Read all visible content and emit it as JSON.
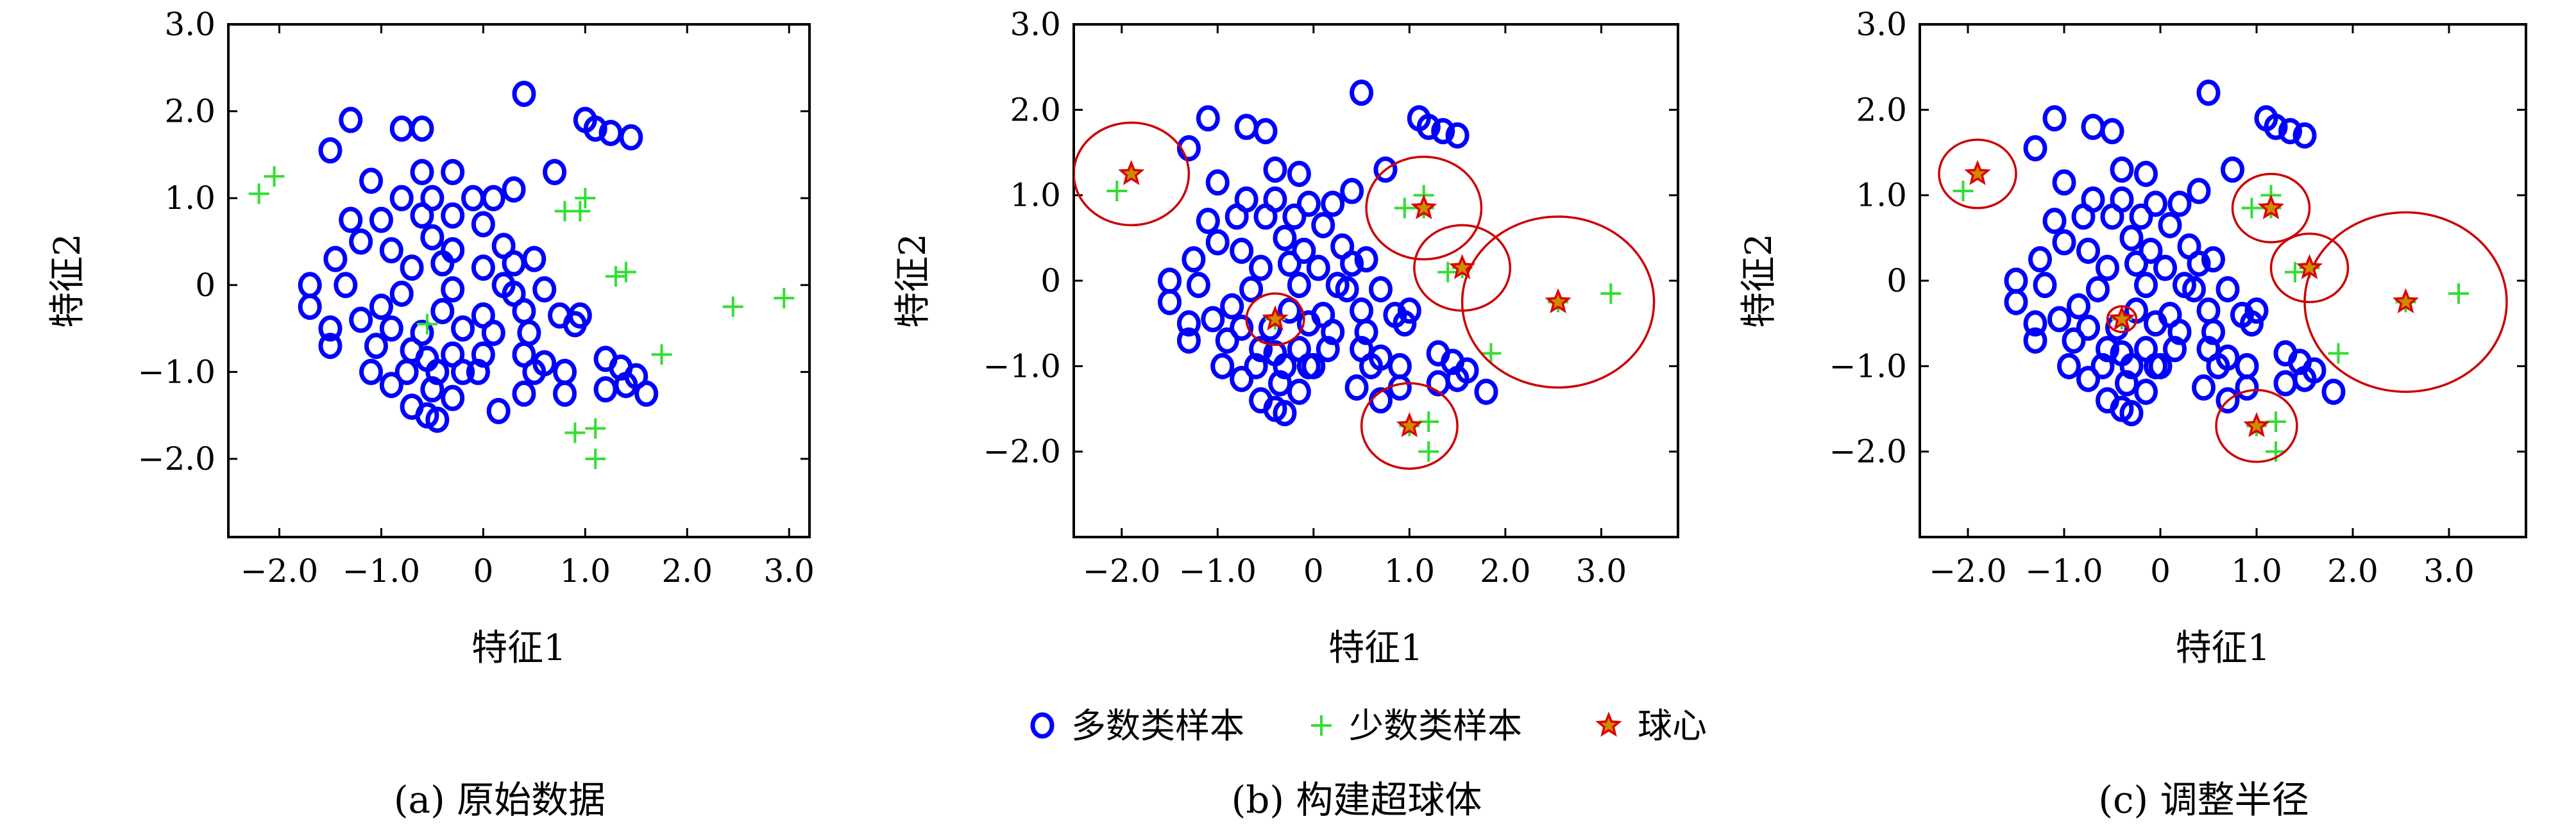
{
  "legend": {
    "majority": "多数类样本",
    "minority": "少数类样本",
    "center": "球心"
  },
  "colors": {
    "majority": "#0000ff",
    "minority": "#33dd33",
    "center_fill": "#cc8b00",
    "center_stroke": "#dd0000",
    "circle": "#cc0000"
  },
  "chart_data": [
    {
      "type": "scatter",
      "caption": "(a) 原始数据",
      "xlabel": "特征1",
      "ylabel": "特征2",
      "xlim": [
        -2.5,
        3.2
      ],
      "ylim": [
        -2.9,
        3.0
      ],
      "xticks": [
        -2.0,
        -1.0,
        0,
        1.0,
        2.0,
        3.0
      ],
      "xtick_labels": [
        "−2.0",
        "−1.0",
        "0",
        "1.0",
        "2.0",
        "3.0"
      ],
      "yticks": [
        -2.0,
        -1.0,
        0,
        1.0,
        2.0,
        3.0
      ],
      "ytick_labels": [
        "−2.0",
        "−1.0",
        "0",
        "1.0",
        "2.0",
        "3.0"
      ],
      "majority": [
        [
          0.4,
          2.2
        ],
        [
          -1.3,
          1.9
        ],
        [
          -0.8,
          1.8
        ],
        [
          -0.6,
          1.8
        ],
        [
          1.0,
          1.9
        ],
        [
          1.1,
          1.8
        ],
        [
          1.25,
          1.75
        ],
        [
          1.45,
          1.7
        ],
        [
          -1.5,
          1.55
        ],
        [
          0.7,
          1.3
        ],
        [
          -1.1,
          1.2
        ],
        [
          -0.6,
          1.3
        ],
        [
          -0.3,
          1.3
        ],
        [
          0.3,
          1.1
        ],
        [
          -0.8,
          1.0
        ],
        [
          -0.5,
          1.0
        ],
        [
          -0.1,
          1.0
        ],
        [
          0.1,
          1.0
        ],
        [
          -1.3,
          0.75
        ],
        [
          -1.0,
          0.75
        ],
        [
          -0.6,
          0.8
        ],
        [
          -0.3,
          0.8
        ],
        [
          0.0,
          0.7
        ],
        [
          -1.2,
          0.5
        ],
        [
          -0.9,
          0.4
        ],
        [
          -0.5,
          0.55
        ],
        [
          -0.3,
          0.4
        ],
        [
          0.2,
          0.45
        ],
        [
          -1.45,
          0.3
        ],
        [
          -0.7,
          0.2
        ],
        [
          -0.4,
          0.25
        ],
        [
          0.0,
          0.2
        ],
        [
          0.3,
          0.25
        ],
        [
          0.5,
          0.3
        ],
        [
          -1.7,
          0.0
        ],
        [
          -1.35,
          0.0
        ],
        [
          -0.8,
          -0.1
        ],
        [
          -0.3,
          -0.05
        ],
        [
          0.2,
          0.0
        ],
        [
          0.6,
          -0.05
        ],
        [
          -1.7,
          -0.25
        ],
        [
          -1.0,
          -0.25
        ],
        [
          -0.4,
          -0.3
        ],
        [
          0.0,
          -0.35
        ],
        [
          0.4,
          -0.3
        ],
        [
          0.75,
          -0.35
        ],
        [
          0.95,
          -0.35
        ],
        [
          -1.5,
          -0.5
        ],
        [
          -1.2,
          -0.4
        ],
        [
          -0.9,
          -0.5
        ],
        [
          -0.6,
          -0.55
        ],
        [
          -0.2,
          -0.5
        ],
        [
          0.1,
          -0.55
        ],
        [
          0.45,
          -0.55
        ],
        [
          0.9,
          -0.45
        ],
        [
          -1.5,
          -0.7
        ],
        [
          -1.05,
          -0.7
        ],
        [
          -0.7,
          -0.75
        ],
        [
          -0.55,
          -0.85
        ],
        [
          -0.3,
          -0.8
        ],
        [
          0.0,
          -0.8
        ],
        [
          0.4,
          -0.8
        ],
        [
          0.6,
          -0.9
        ],
        [
          1.2,
          -0.85
        ],
        [
          -1.1,
          -1.0
        ],
        [
          -0.75,
          -1.0
        ],
        [
          -0.45,
          -1.0
        ],
        [
          -0.2,
          -1.0
        ],
        [
          0.5,
          -1.0
        ],
        [
          0.8,
          -1.0
        ],
        [
          1.5,
          -1.05
        ],
        [
          1.35,
          -0.95
        ],
        [
          -0.9,
          -1.15
        ],
        [
          -0.5,
          -1.2
        ],
        [
          -0.3,
          -1.3
        ],
        [
          0.4,
          -1.25
        ],
        [
          0.8,
          -1.25
        ],
        [
          1.2,
          -1.2
        ],
        [
          1.4,
          -1.15
        ],
        [
          1.6,
          -1.25
        ],
        [
          -0.7,
          -1.4
        ],
        [
          -0.55,
          -1.5
        ],
        [
          -0.45,
          -1.55
        ],
        [
          0.15,
          -1.45
        ],
        [
          -0.05,
          -1.0
        ],
        [
          0.3,
          -0.1
        ]
      ],
      "minority": [
        [
          -2.2,
          1.05
        ],
        [
          -2.05,
          1.25
        ],
        [
          0.8,
          0.85
        ],
        [
          0.95,
          0.85
        ],
        [
          1.0,
          1.0
        ],
        [
          1.3,
          0.1
        ],
        [
          1.4,
          0.15
        ],
        [
          -0.55,
          -0.45
        ],
        [
          2.45,
          -0.25
        ],
        [
          2.95,
          -0.15
        ],
        [
          1.75,
          -0.8
        ],
        [
          0.9,
          -1.7
        ],
        [
          1.1,
          -1.65
        ],
        [
          1.1,
          -2.0
        ]
      ],
      "centers": [],
      "circles": []
    },
    {
      "type": "scatter",
      "caption": "(b) 构建超球体",
      "xlabel": "特征1",
      "ylabel": "特征2",
      "xlim": [
        -2.5,
        3.8
      ],
      "ylim": [
        -3.0,
        3.0
      ],
      "xticks": [
        -2.0,
        -1.0,
        0,
        1.0,
        2.0,
        3.0
      ],
      "xtick_labels": [
        "−2.0",
        "−1.0",
        "0",
        "1.0",
        "2.0",
        "3.0"
      ],
      "yticks": [
        -2.0,
        -1.0,
        0,
        1.0,
        2.0,
        3.0
      ],
      "ytick_labels": [
        "−2.0",
        "−1.0",
        "0",
        "1.0",
        "2.0",
        "3.0"
      ],
      "majority": [
        [
          0.5,
          2.2
        ],
        [
          -1.1,
          1.9
        ],
        [
          -0.7,
          1.8
        ],
        [
          -0.5,
          1.75
        ],
        [
          1.1,
          1.9
        ],
        [
          1.2,
          1.8
        ],
        [
          1.35,
          1.75
        ],
        [
          1.5,
          1.7
        ],
        [
          -1.3,
          1.55
        ],
        [
          0.75,
          1.3
        ],
        [
          -1.0,
          1.15
        ],
        [
          -0.4,
          1.3
        ],
        [
          -0.15,
          1.25
        ],
        [
          0.4,
          1.05
        ],
        [
          -0.7,
          0.95
        ],
        [
          -0.4,
          0.95
        ],
        [
          -0.05,
          0.9
        ],
        [
          0.2,
          0.9
        ],
        [
          -1.1,
          0.7
        ],
        [
          -0.8,
          0.75
        ],
        [
          -0.5,
          0.75
        ],
        [
          -0.2,
          0.75
        ],
        [
          0.1,
          0.65
        ],
        [
          -1.0,
          0.45
        ],
        [
          -0.75,
          0.35
        ],
        [
          -0.3,
          0.5
        ],
        [
          -0.1,
          0.35
        ],
        [
          0.3,
          0.4
        ],
        [
          -1.25,
          0.25
        ],
        [
          -0.55,
          0.15
        ],
        [
          -0.25,
          0.2
        ],
        [
          0.05,
          0.15
        ],
        [
          0.4,
          0.2
        ],
        [
          0.55,
          0.25
        ],
        [
          -1.5,
          0.0
        ],
        [
          -1.2,
          -0.05
        ],
        [
          -0.65,
          -0.1
        ],
        [
          -0.15,
          -0.05
        ],
        [
          0.25,
          -0.05
        ],
        [
          0.7,
          -0.1
        ],
        [
          -1.5,
          -0.25
        ],
        [
          -0.85,
          -0.3
        ],
        [
          -0.25,
          -0.35
        ],
        [
          0.1,
          -0.4
        ],
        [
          0.5,
          -0.35
        ],
        [
          0.85,
          -0.4
        ],
        [
          1.0,
          -0.35
        ],
        [
          -1.3,
          -0.5
        ],
        [
          -1.05,
          -0.45
        ],
        [
          -0.75,
          -0.55
        ],
        [
          -0.45,
          -0.55
        ],
        [
          -0.05,
          -0.5
        ],
        [
          0.2,
          -0.6
        ],
        [
          0.55,
          -0.6
        ],
        [
          0.95,
          -0.5
        ],
        [
          -1.3,
          -0.7
        ],
        [
          -0.9,
          -0.7
        ],
        [
          -0.55,
          -0.8
        ],
        [
          -0.4,
          -0.85
        ],
        [
          -0.15,
          -0.8
        ],
        [
          0.15,
          -0.8
        ],
        [
          0.5,
          -0.8
        ],
        [
          0.7,
          -0.9
        ],
        [
          1.3,
          -0.85
        ],
        [
          -0.95,
          -1.0
        ],
        [
          -0.6,
          -1.0
        ],
        [
          -0.3,
          -1.0
        ],
        [
          -0.05,
          -1.0
        ],
        [
          0.6,
          -1.0
        ],
        [
          0.9,
          -1.0
        ],
        [
          1.6,
          -1.05
        ],
        [
          1.45,
          -0.95
        ],
        [
          -0.75,
          -1.15
        ],
        [
          -0.35,
          -1.2
        ],
        [
          -0.15,
          -1.3
        ],
        [
          0.45,
          -1.25
        ],
        [
          0.9,
          -1.25
        ],
        [
          1.3,
          -1.2
        ],
        [
          1.5,
          -1.15
        ],
        [
          1.8,
          -1.3
        ],
        [
          -0.55,
          -1.4
        ],
        [
          -0.4,
          -1.5
        ],
        [
          -0.3,
          -1.55
        ],
        [
          0.7,
          -1.4
        ],
        [
          0.0,
          -1.0
        ],
        [
          0.35,
          -0.1
        ]
      ],
      "minority": [
        [
          -2.05,
          1.05
        ],
        [
          0.95,
          0.85
        ],
        [
          1.15,
          0.85
        ],
        [
          1.15,
          1.0
        ],
        [
          1.4,
          0.1
        ],
        [
          1.55,
          0.15
        ],
        [
          -0.4,
          -0.45
        ],
        [
          2.55,
          -0.25
        ],
        [
          3.1,
          -0.15
        ],
        [
          1.85,
          -0.85
        ],
        [
          1.0,
          -1.7
        ],
        [
          1.2,
          -1.65
        ],
        [
          1.2,
          -2.0
        ]
      ],
      "centers": [
        [
          -1.9,
          1.25
        ],
        [
          1.15,
          0.85
        ],
        [
          1.55,
          0.15
        ],
        [
          -0.4,
          -0.45
        ],
        [
          2.55,
          -0.25
        ],
        [
          1.0,
          -1.7
        ]
      ],
      "circles": [
        [
          -1.9,
          1.25,
          0.6
        ],
        [
          1.15,
          0.85,
          0.6
        ],
        [
          1.55,
          0.15,
          0.5
        ],
        [
          -0.4,
          -0.45,
          0.3
        ],
        [
          2.55,
          -0.25,
          1.0
        ],
        [
          1.0,
          -1.7,
          0.5
        ]
      ]
    },
    {
      "type": "scatter",
      "caption": "(c) 调整半径",
      "xlabel": "特征1",
      "ylabel": "特征2",
      "xlim": [
        -2.5,
        3.8
      ],
      "ylim": [
        -3.0,
        3.0
      ],
      "xticks": [
        -2.0,
        -1.0,
        0,
        1.0,
        2.0,
        3.0
      ],
      "xtick_labels": [
        "−2.0",
        "−1.0",
        "0",
        "1.0",
        "2.0",
        "3.0"
      ],
      "yticks": [
        -2.0,
        -1.0,
        0,
        1.0,
        2.0,
        3.0
      ],
      "ytick_labels": [
        "−2.0",
        "−1.0",
        "0",
        "1.0",
        "2.0",
        "3.0"
      ],
      "majority": [
        [
          0.5,
          2.2
        ],
        [
          -1.1,
          1.9
        ],
        [
          -0.7,
          1.8
        ],
        [
          -0.5,
          1.75
        ],
        [
          1.1,
          1.9
        ],
        [
          1.2,
          1.8
        ],
        [
          1.35,
          1.75
        ],
        [
          1.5,
          1.7
        ],
        [
          -1.3,
          1.55
        ],
        [
          0.75,
          1.3
        ],
        [
          -1.0,
          1.15
        ],
        [
          -0.4,
          1.3
        ],
        [
          -0.15,
          1.25
        ],
        [
          0.4,
          1.05
        ],
        [
          -0.7,
          0.95
        ],
        [
          -0.4,
          0.95
        ],
        [
          -0.05,
          0.9
        ],
        [
          0.2,
          0.9
        ],
        [
          -1.1,
          0.7
        ],
        [
          -0.8,
          0.75
        ],
        [
          -0.5,
          0.75
        ],
        [
          -0.2,
          0.75
        ],
        [
          0.1,
          0.65
        ],
        [
          -1.0,
          0.45
        ],
        [
          -0.75,
          0.35
        ],
        [
          -0.3,
          0.5
        ],
        [
          -0.1,
          0.35
        ],
        [
          0.3,
          0.4
        ],
        [
          -1.25,
          0.25
        ],
        [
          -0.55,
          0.15
        ],
        [
          -0.25,
          0.2
        ],
        [
          0.05,
          0.15
        ],
        [
          0.4,
          0.2
        ],
        [
          0.55,
          0.25
        ],
        [
          -1.5,
          0.0
        ],
        [
          -1.2,
          -0.05
        ],
        [
          -0.65,
          -0.1
        ],
        [
          -0.15,
          -0.05
        ],
        [
          0.25,
          -0.05
        ],
        [
          0.7,
          -0.1
        ],
        [
          -1.5,
          -0.25
        ],
        [
          -0.85,
          -0.3
        ],
        [
          -0.25,
          -0.35
        ],
        [
          0.1,
          -0.4
        ],
        [
          0.5,
          -0.35
        ],
        [
          0.85,
          -0.4
        ],
        [
          1.0,
          -0.35
        ],
        [
          -1.3,
          -0.5
        ],
        [
          -1.05,
          -0.45
        ],
        [
          -0.75,
          -0.55
        ],
        [
          -0.45,
          -0.55
        ],
        [
          -0.05,
          -0.5
        ],
        [
          0.2,
          -0.6
        ],
        [
          0.55,
          -0.6
        ],
        [
          0.95,
          -0.5
        ],
        [
          -1.3,
          -0.7
        ],
        [
          -0.9,
          -0.7
        ],
        [
          -0.55,
          -0.8
        ],
        [
          -0.4,
          -0.85
        ],
        [
          -0.15,
          -0.8
        ],
        [
          0.15,
          -0.8
        ],
        [
          0.5,
          -0.8
        ],
        [
          0.7,
          -0.9
        ],
        [
          1.3,
          -0.85
        ],
        [
          -0.95,
          -1.0
        ],
        [
          -0.6,
          -1.0
        ],
        [
          -0.3,
          -1.0
        ],
        [
          -0.05,
          -1.0
        ],
        [
          0.6,
          -1.0
        ],
        [
          0.9,
          -1.0
        ],
        [
          1.6,
          -1.05
        ],
        [
          1.45,
          -0.95
        ],
        [
          -0.75,
          -1.15
        ],
        [
          -0.35,
          -1.2
        ],
        [
          -0.15,
          -1.3
        ],
        [
          0.45,
          -1.25
        ],
        [
          0.9,
          -1.25
        ],
        [
          1.3,
          -1.2
        ],
        [
          1.5,
          -1.15
        ],
        [
          1.8,
          -1.3
        ],
        [
          -0.55,
          -1.4
        ],
        [
          -0.4,
          -1.5
        ],
        [
          -0.3,
          -1.55
        ],
        [
          0.7,
          -1.4
        ],
        [
          0.0,
          -1.0
        ],
        [
          0.35,
          -0.1
        ]
      ],
      "minority": [
        [
          -2.05,
          1.05
        ],
        [
          0.95,
          0.85
        ],
        [
          1.15,
          0.85
        ],
        [
          1.15,
          1.0
        ],
        [
          1.4,
          0.1
        ],
        [
          1.55,
          0.15
        ],
        [
          -0.4,
          -0.45
        ],
        [
          2.55,
          -0.25
        ],
        [
          3.1,
          -0.15
        ],
        [
          1.85,
          -0.85
        ],
        [
          1.0,
          -1.7
        ],
        [
          1.2,
          -1.65
        ],
        [
          1.2,
          -2.0
        ]
      ],
      "centers": [
        [
          -1.9,
          1.25
        ],
        [
          1.15,
          0.85
        ],
        [
          1.55,
          0.15
        ],
        [
          -0.4,
          -0.45
        ],
        [
          2.55,
          -0.25
        ],
        [
          1.0,
          -1.7
        ]
      ],
      "circles": [
        [
          -1.9,
          1.25,
          0.4
        ],
        [
          1.15,
          0.85,
          0.4
        ],
        [
          1.55,
          0.15,
          0.4
        ],
        [
          -0.4,
          -0.45,
          0.15
        ],
        [
          2.55,
          -0.25,
          1.05
        ],
        [
          1.0,
          -1.7,
          0.42
        ]
      ]
    }
  ]
}
